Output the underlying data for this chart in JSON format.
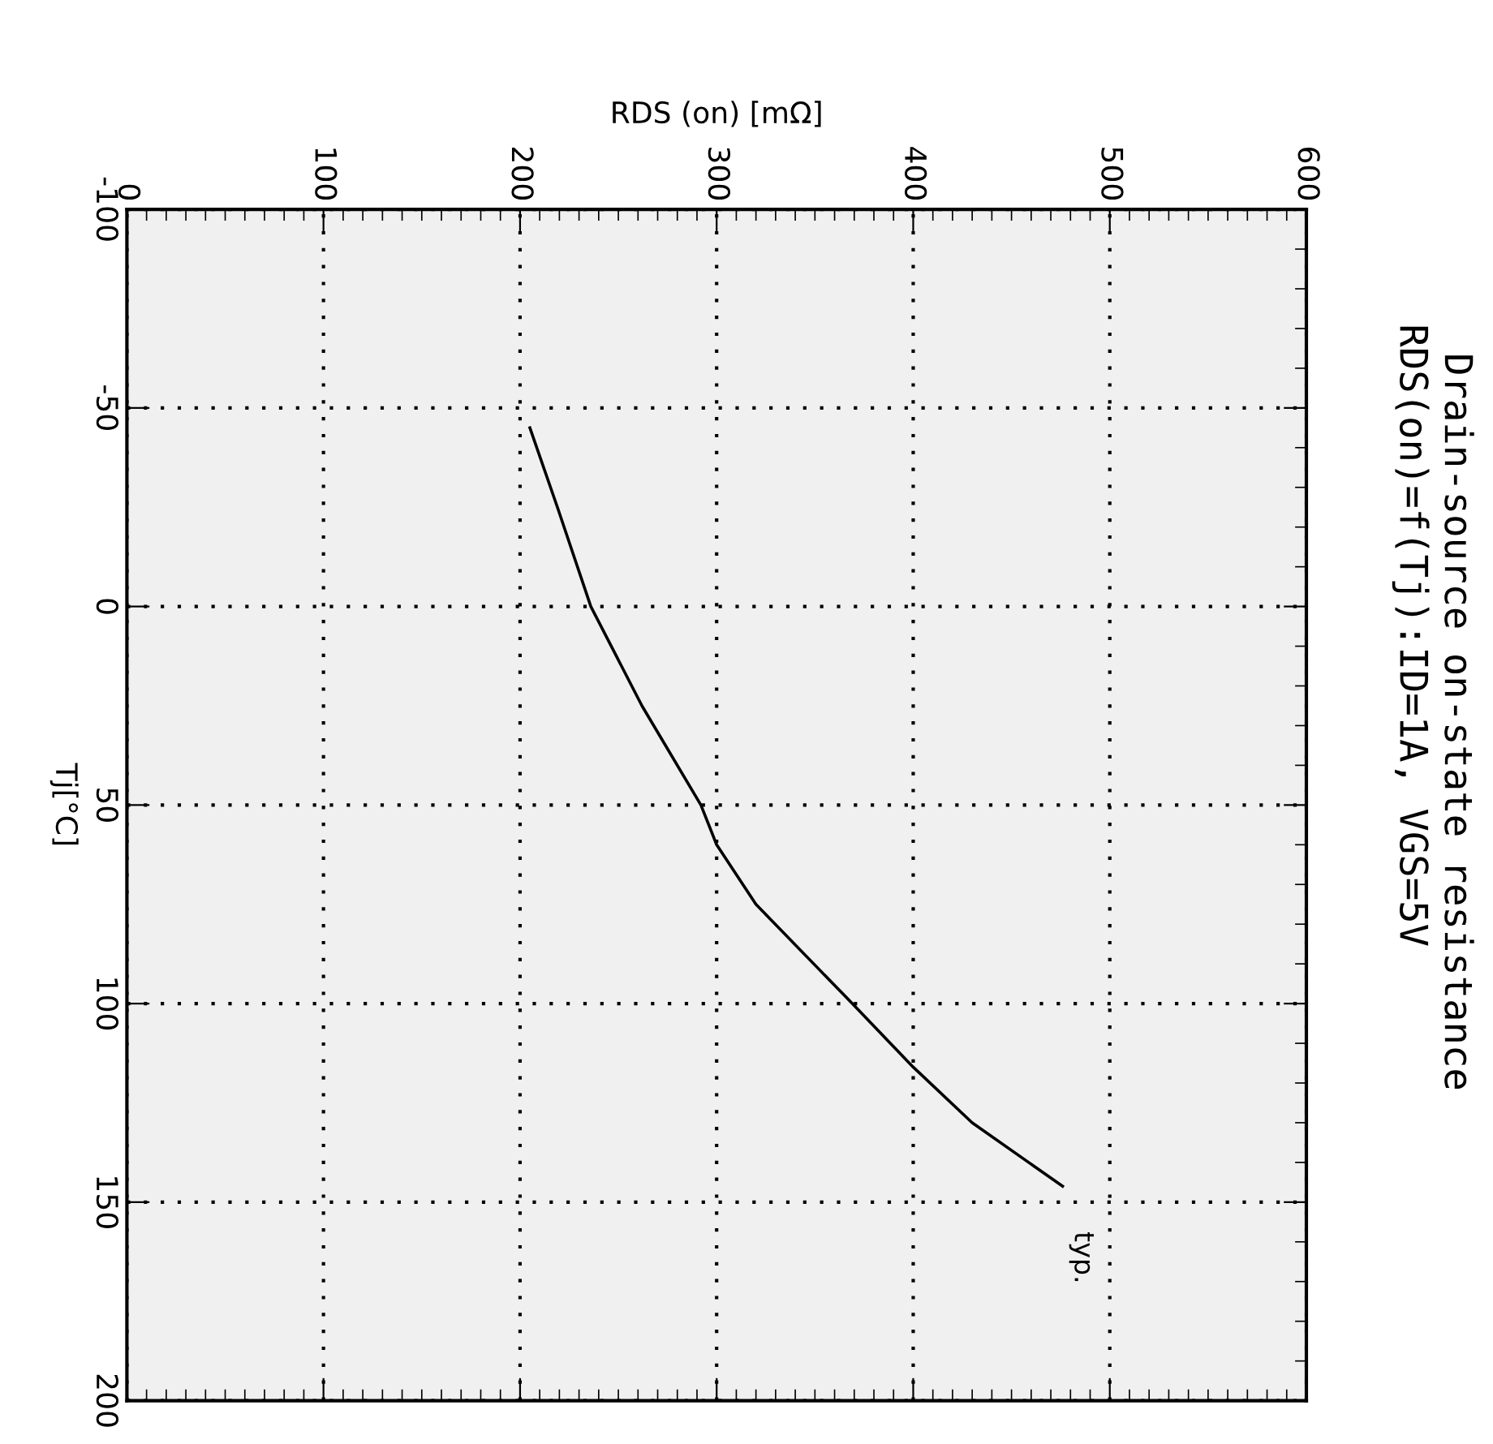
{
  "chart_data": {
    "type": "line",
    "title": "Drain-source on-state resistance",
    "subtitle": "RDS(on)=f(Tj):ID=1A, VGS=5V",
    "xlabel": "RDS (on) [mΩ]",
    "ylabel": "Tj[°C]",
    "x": [
      205,
      219,
      236,
      262,
      292,
      300,
      320,
      369,
      400,
      430,
      476
    ],
    "series": [
      {
        "color": "#000000",
        "values": [
          -45,
          -25,
          0,
          25,
          50,
          60,
          75,
          100,
          116,
          130,
          146
        ]
      }
    ],
    "annotations": [
      "typ."
    ],
    "xlim": [
      0,
      600
    ],
    "xticks": [
      0,
      100,
      200,
      300,
      400,
      500,
      600
    ],
    "ylim": [
      200,
      -100
    ],
    "yticks": [
      -100,
      -50,
      0,
      50,
      100,
      150,
      200
    ],
    "grid": true,
    "marker": "none",
    "line_style": "solid"
  }
}
